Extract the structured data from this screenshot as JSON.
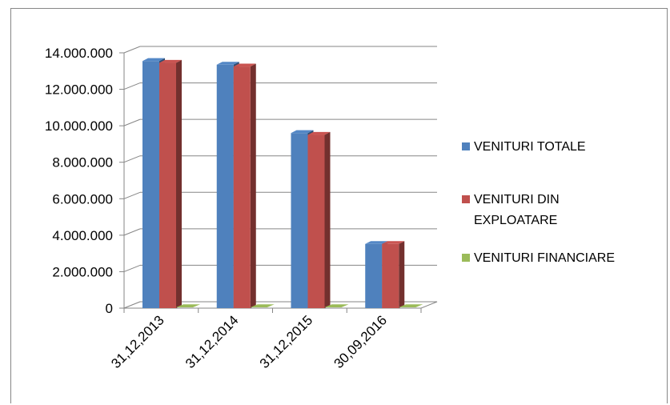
{
  "chart_data": {
    "type": "bar",
    "style": "3d-clustered-column",
    "categories": [
      "31,12,2013",
      "31,12,2014",
      "31,12,2015",
      "30,09,2016"
    ],
    "series": [
      {
        "name": "VENITURI TOTALE",
        "color": "#4F81BD",
        "values": [
          13550000,
          13350000,
          9600000,
          3520000
        ]
      },
      {
        "name": "VENITURI DIN EXPLOATARE",
        "color": "#C0504D",
        "values": [
          13450000,
          13250000,
          9500000,
          3520000
        ]
      },
      {
        "name": "VENITURI FINANCIARE",
        "color": "#9BBB59",
        "values": [
          0,
          0,
          0,
          0
        ]
      }
    ],
    "y_ticks": [
      "0",
      "2.000.000",
      "4.000.000",
      "6.000.000",
      "8.000.000",
      "10.000.000",
      "12.000.000",
      "14.000.000"
    ],
    "ylim": [
      0,
      14000000
    ],
    "grid": true,
    "legend_position": "right"
  }
}
